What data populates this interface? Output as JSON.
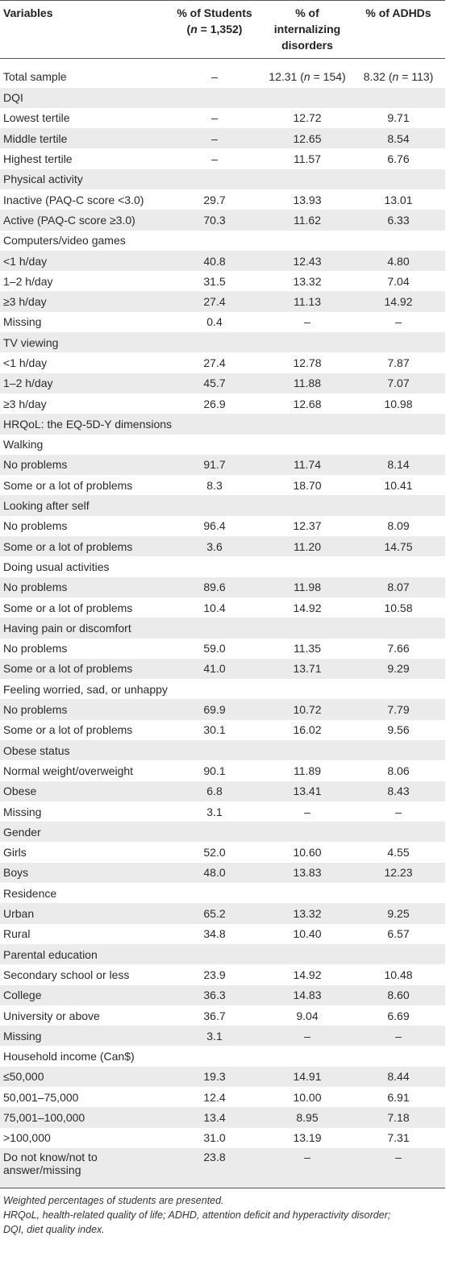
{
  "table": {
    "headers": [
      {
        "lines": [
          "Variables"
        ]
      },
      {
        "lines": [
          "% of Students",
          "(n = 1,352)"
        ]
      },
      {
        "lines": [
          "% of",
          "internalizing",
          "disorders"
        ]
      },
      {
        "lines": [
          "% of ADHDs"
        ]
      }
    ],
    "rows": [
      [
        "Total sample",
        "–",
        "12.31 (n = 154)",
        "8.32 (n = 113)"
      ],
      [
        "DQI",
        "",
        "",
        ""
      ],
      [
        "Lowest tertile",
        "–",
        "12.72",
        "9.71"
      ],
      [
        "Middle tertile",
        "–",
        "12.65",
        "8.54"
      ],
      [
        "Highest tertile",
        "–",
        "11.57",
        "6.76"
      ],
      [
        "Physical activity",
        "",
        "",
        ""
      ],
      [
        "Inactive (PAQ-C score <3.0)",
        "29.7",
        "13.93",
        "13.01"
      ],
      [
        "Active (PAQ-C score ≥3.0)",
        "70.3",
        "11.62",
        "6.33"
      ],
      [
        "Computers/video games",
        "",
        "",
        ""
      ],
      [
        "<1 h/day",
        "40.8",
        "12.43",
        "4.80"
      ],
      [
        "1–2 h/day",
        "31.5",
        "13.32",
        "7.04"
      ],
      [
        "≥3 h/day",
        "27.4",
        "11.13",
        "14.92"
      ],
      [
        "Missing",
        "0.4",
        "–",
        "–"
      ],
      [
        "TV viewing",
        "",
        "",
        ""
      ],
      [
        "<1 h/day",
        "27.4",
        "12.78",
        "7.87"
      ],
      [
        "1–2 h/day",
        "45.7",
        "11.88",
        "7.07"
      ],
      [
        "≥3 h/day",
        "26.9",
        "12.68",
        "10.98"
      ],
      [
        "HRQoL: the EQ-5D-Y dimensions",
        "",
        "",
        ""
      ],
      [
        "Walking",
        "",
        "",
        ""
      ],
      [
        "No problems",
        "91.7",
        "11.74",
        "8.14"
      ],
      [
        "Some or a lot of problems",
        "8.3",
        "18.70",
        "10.41"
      ],
      [
        "Looking after self",
        "",
        "",
        ""
      ],
      [
        "No problems",
        "96.4",
        "12.37",
        "8.09"
      ],
      [
        "Some or a lot of problems",
        "3.6",
        "11.20",
        "14.75"
      ],
      [
        "Doing usual activities",
        "",
        "",
        ""
      ],
      [
        "No problems",
        "89.6",
        "11.98",
        "8.07"
      ],
      [
        "Some or a lot of problems",
        "10.4",
        "14.92",
        "10.58"
      ],
      [
        "Having pain or discomfort",
        "",
        "",
        ""
      ],
      [
        "No problems",
        "59.0",
        "11.35",
        "7.66"
      ],
      [
        "Some or a lot of problems",
        "41.0",
        "13.71",
        "9.29"
      ],
      [
        "Feeling worried, sad, or unhappy",
        "",
        "",
        ""
      ],
      [
        "No problems",
        "69.9",
        "10.72",
        "7.79"
      ],
      [
        "Some or a lot of problems",
        "30.1",
        "16.02",
        "9.56"
      ],
      [
        "Obese status",
        "",
        "",
        ""
      ],
      [
        "Normal weight/overweight",
        "90.1",
        "11.89",
        "8.06"
      ],
      [
        "Obese",
        "6.8",
        "13.41",
        "8.43"
      ],
      [
        "Missing",
        "3.1",
        "–",
        "–"
      ],
      [
        "Gender",
        "",
        "",
        ""
      ],
      [
        "Girls",
        "52.0",
        "10.60",
        "4.55"
      ],
      [
        "Boys",
        "48.0",
        "13.83",
        "12.23"
      ],
      [
        "Residence",
        "",
        "",
        ""
      ],
      [
        "Urban",
        "65.2",
        "13.32",
        "9.25"
      ],
      [
        "Rural",
        "34.8",
        "10.40",
        "6.57"
      ],
      [
        "Parental education",
        "",
        "",
        ""
      ],
      [
        "Secondary school or less",
        "23.9",
        "14.92",
        "10.48"
      ],
      [
        "College",
        "36.3",
        "14.83",
        "8.60"
      ],
      [
        "University or above",
        "36.7",
        "9.04",
        "6.69"
      ],
      [
        "Missing",
        "3.1",
        "–",
        "–"
      ],
      [
        "Household income (Can$)",
        "",
        "",
        ""
      ],
      [
        "≤50,000",
        "19.3",
        "14.91",
        "8.44"
      ],
      [
        "50,001–75,000",
        "12.4",
        "10.00",
        "6.91"
      ],
      [
        "75,001–100,000",
        "13.4",
        "8.95",
        "7.18"
      ],
      [
        ">100,000",
        "31.0",
        "13.19",
        "7.31"
      ],
      [
        "Do not know/not to answer/missing",
        "23.8",
        "–",
        "–"
      ]
    ]
  },
  "notes": [
    "Weighted percentages of students are presented.",
    "HRQoL, health-related quality of life; ADHD, attention deficit and hyperactivity disorder;",
    "DQI, diet quality index."
  ]
}
